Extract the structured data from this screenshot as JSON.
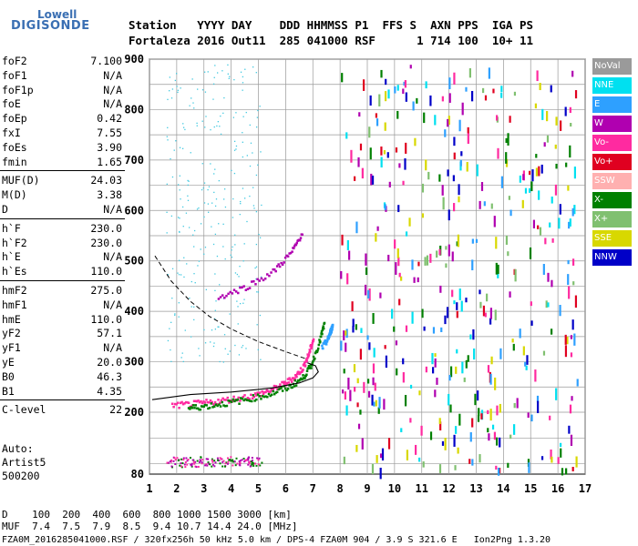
{
  "logo": {
    "line1": "Lowell",
    "line2": "DIGISONDE"
  },
  "header": {
    "labels": "Station   YYYY DAY    DDD HHMMSS P1  FFS S  AXN PPS  IGA PS",
    "values": "Fortaleza 2016 Out11  285 041000 RSF      1 714 100  10+ 11"
  },
  "params": [
    {
      "name": "foF2",
      "value": "7.100"
    },
    {
      "name": "foF1",
      "value": "N/A"
    },
    {
      "name": "foF1p",
      "value": "N/A"
    },
    {
      "name": "foE",
      "value": "N/A"
    },
    {
      "name": "foEp",
      "value": "0.42"
    },
    {
      "name": "fxI",
      "value": "7.55"
    },
    {
      "name": "foEs",
      "value": "3.90"
    },
    {
      "name": "fmin",
      "value": "1.65"
    },
    {
      "name": "MUF(D)",
      "value": "24.03"
    },
    {
      "name": "M(D)",
      "value": "3.38"
    },
    {
      "name": "D",
      "value": "N/A"
    },
    {
      "name": "h`F",
      "value": "230.0"
    },
    {
      "name": "h`F2",
      "value": "230.0"
    },
    {
      "name": "h`E",
      "value": "N/A"
    },
    {
      "name": "h`Es",
      "value": "110.0"
    },
    {
      "name": "hmF2",
      "value": "275.0"
    },
    {
      "name": "hmF1",
      "value": "N/A"
    },
    {
      "name": "hmE",
      "value": "110.0"
    },
    {
      "name": "yF2",
      "value": "57.1"
    },
    {
      "name": "yF1",
      "value": "N/A"
    },
    {
      "name": "yE",
      "value": "20.0"
    },
    {
      "name": "B0",
      "value": "46.3"
    },
    {
      "name": "B1",
      "value": "4.35"
    },
    {
      "name": "C-level",
      "value": "22"
    }
  ],
  "auto": {
    "line1": "Auto:",
    "line2": "Artist5",
    "line3": "500200"
  },
  "legend": [
    {
      "label": "NoVal",
      "color": "#9a9a9a"
    },
    {
      "label": "NNE",
      "color": "#00e0f0"
    },
    {
      "label": "E",
      "color": "#2ea0ff"
    },
    {
      "label": "W",
      "color": "#b000b0"
    },
    {
      "label": "Vo-",
      "color": "#ff2aa0"
    },
    {
      "label": "Vo+",
      "color": "#e00020"
    },
    {
      "label": "SSW",
      "color": "#ffb0b0"
    },
    {
      "label": "X-",
      "color": "#008000"
    },
    {
      "label": "X+",
      "color": "#80c070"
    },
    {
      "label": "SSE",
      "color": "#d8d800"
    },
    {
      "label": "NNW",
      "color": "#0000c8"
    }
  ],
  "muf_table": {
    "d_row": "D    100  200  400  600  800 1000 1500 3000 [km]",
    "muf_row": "MUF  7.4  7.5  7.9  8.5  9.4 10.7 14.4 24.0 [MHz]"
  },
  "footer": "FZA0M_2016285041000.RSF / 320fx256h 50 kHz 5.0 km / DPS-4 FZA0M 904 / 3.9 S 321.6 E   Ion2Png 1.3.20",
  "chart_data": {
    "type": "scatter",
    "xlabel": "",
    "ylabel": "",
    "xlim": [
      1,
      17
    ],
    "ylim": [
      80,
      900
    ],
    "x_ticks": [
      1,
      2,
      3,
      4,
      5,
      6,
      7,
      8,
      9,
      10,
      11,
      12,
      13,
      14,
      15,
      16,
      17
    ],
    "y_ticks": [
      80,
      200,
      300,
      400,
      500,
      600,
      700,
      800,
      900
    ],
    "grid": true,
    "series": [
      {
        "name": "Vo-",
        "color": "#ff2aa0",
        "points": [
          [
            1.8,
            215
          ],
          [
            2.5,
            218
          ],
          [
            3.2,
            222
          ],
          [
            4.0,
            228
          ],
          [
            4.8,
            235
          ],
          [
            5.4,
            245
          ],
          [
            5.9,
            258
          ],
          [
            6.3,
            272
          ],
          [
            6.6,
            290
          ],
          [
            6.8,
            315
          ],
          [
            7.0,
            350
          ]
        ]
      },
      {
        "name": "X-",
        "color": "#008000",
        "points": [
          [
            2.4,
            210
          ],
          [
            3.0,
            214
          ],
          [
            3.8,
            220
          ],
          [
            4.6,
            228
          ],
          [
            5.4,
            238
          ],
          [
            6.1,
            252
          ],
          [
            6.6,
            270
          ],
          [
            6.9,
            295
          ],
          [
            7.2,
            340
          ],
          [
            7.4,
            380
          ]
        ]
      },
      {
        "name": "E",
        "color": "#2ea0ff",
        "points": [
          [
            7.3,
            330
          ],
          [
            7.5,
            345
          ],
          [
            7.6,
            360
          ],
          [
            7.7,
            375
          ]
        ]
      },
      {
        "name": "W",
        "color": "#b000b0",
        "points": [
          [
            3.5,
            430
          ],
          [
            4.5,
            450
          ],
          [
            5.5,
            480
          ],
          [
            6.2,
            520
          ],
          [
            6.6,
            560
          ]
        ]
      }
    ],
    "profile_curve": [
      [
        1.1,
        225
      ],
      [
        2.5,
        235
      ],
      [
        4.0,
        240
      ],
      [
        5.5,
        248
      ],
      [
        6.5,
        258
      ],
      [
        7.0,
        268
      ],
      [
        7.2,
        280
      ],
      [
        7.1,
        292
      ],
      [
        6.8,
        298
      ]
    ],
    "dashed_curve": [
      [
        1.2,
        510
      ],
      [
        1.8,
        460
      ],
      [
        2.5,
        420
      ],
      [
        3.2,
        390
      ],
      [
        4.0,
        365
      ],
      [
        5.0,
        340
      ],
      [
        6.0,
        320
      ],
      [
        6.8,
        305
      ]
    ]
  }
}
